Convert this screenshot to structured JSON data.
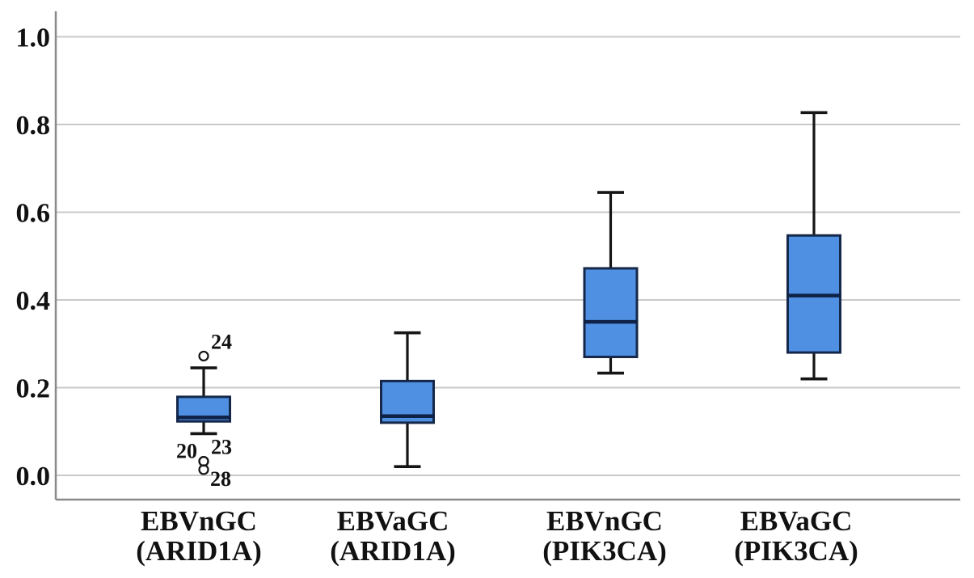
{
  "chart_data": {
    "type": "box",
    "title": "",
    "xlabel": "",
    "ylabel": "",
    "ylim": [
      0.0,
      1.0
    ],
    "ytick_values": [
      0.0,
      0.2,
      0.4,
      0.6,
      0.8,
      1.0
    ],
    "ytick_labels": [
      "0.0",
      "0.2",
      "0.4",
      "0.6",
      "0.8",
      "1.0"
    ],
    "grid": "horizontal",
    "legend": "none",
    "categories": [
      {
        "line1": "EBVnGC",
        "line2": "(ARID1A)"
      },
      {
        "line1": "EBVaGC",
        "line2": "(ARID1A)"
      },
      {
        "line1": "EBVnGC",
        "line2": "(PIK3CA)"
      },
      {
        "line1": "EBVaGC",
        "line2": "(PIK3CA)"
      }
    ],
    "boxes": [
      {
        "category": "EBVnGC (ARID1A)",
        "whisker_low": 0.095,
        "q1": 0.123,
        "median": 0.132,
        "q3": 0.179,
        "whisker_high": 0.245,
        "outliers": [
          {
            "value": 0.272,
            "label": "24",
            "label_pos": "above-right"
          },
          {
            "value": 0.032,
            "label": "20",
            "label_pos": "above-left"
          },
          {
            "value": 0.032,
            "label": "23",
            "label_pos": "above-right"
          },
          {
            "value": 0.013,
            "label": "28",
            "label_pos": "below-right"
          }
        ]
      },
      {
        "category": "EBVaGC (ARID1A)",
        "whisker_low": 0.02,
        "q1": 0.12,
        "median": 0.135,
        "q3": 0.215,
        "whisker_high": 0.325,
        "outliers": []
      },
      {
        "category": "EBVnGC (PIK3CA)",
        "whisker_low": 0.233,
        "q1": 0.27,
        "median": 0.35,
        "q3": 0.472,
        "whisker_high": 0.645,
        "outliers": []
      },
      {
        "category": "EBVaGC (PIK3CA)",
        "whisker_low": 0.22,
        "q1": 0.28,
        "median": 0.41,
        "q3": 0.547,
        "whisker_high": 0.827,
        "outliers": []
      }
    ],
    "colors": {
      "background": "#ffffff",
      "box_fill": "#4f90e2",
      "box_border": "#16284a",
      "median": "#0f2145",
      "whisker": "#151515",
      "outlier": "#151515",
      "gridline": "#c9c9c9",
      "axis": "#8a8a8a",
      "text": "#111111"
    }
  }
}
